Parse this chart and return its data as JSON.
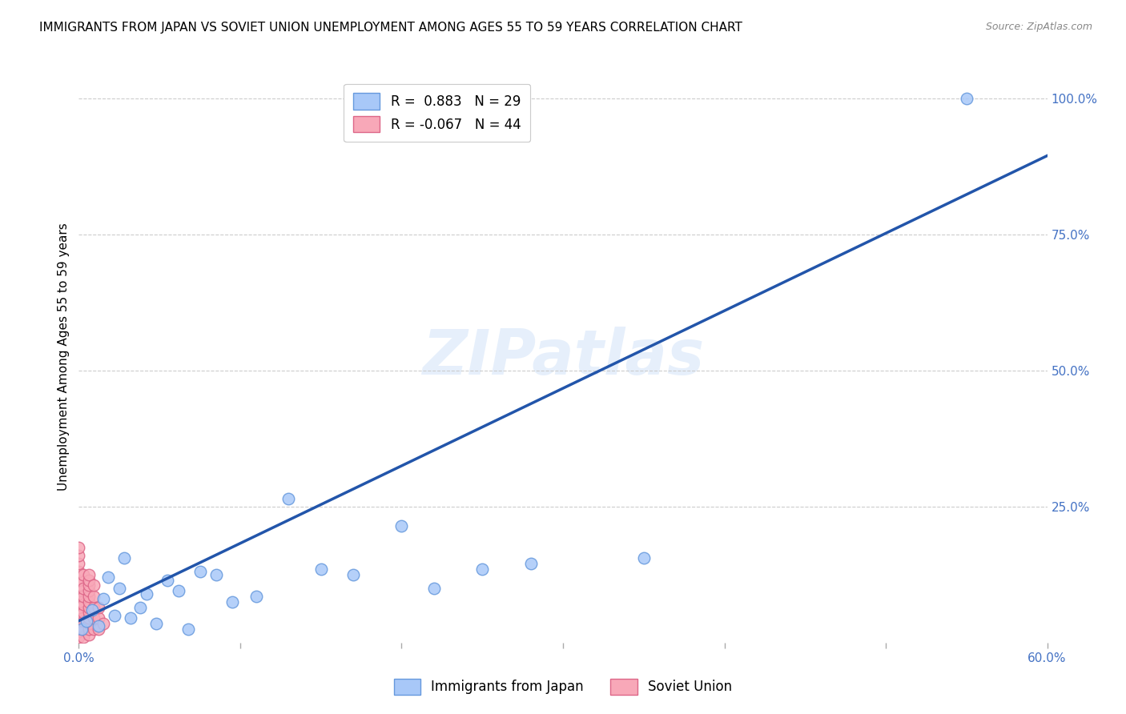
{
  "title": "IMMIGRANTS FROM JAPAN VS SOVIET UNION UNEMPLOYMENT AMONG AGES 55 TO 59 YEARS CORRELATION CHART",
  "source": "Source: ZipAtlas.com",
  "ylabel": "Unemployment Among Ages 55 to 59 years",
  "xlim": [
    0.0,
    0.6
  ],
  "ylim": [
    0.0,
    1.05
  ],
  "xtick_vals": [
    0.0,
    0.1,
    0.2,
    0.3,
    0.4,
    0.5,
    0.6
  ],
  "xtick_labels": [
    "0.0%",
    "",
    "",
    "",
    "",
    "",
    "60.0%"
  ],
  "ytick_vals": [
    0.25,
    0.5,
    0.75,
    1.0
  ],
  "ytick_labels": [
    "25.0%",
    "50.0%",
    "75.0%",
    "100.0%"
  ],
  "watermark": "ZIPatlas",
  "legend_entries": [
    {
      "label": "Immigrants from Japan",
      "R": 0.883,
      "N": 29,
      "color": "#a8c8f8"
    },
    {
      "label": "Soviet Union",
      "R": -0.067,
      "N": 44,
      "color": "#f8a8b8"
    }
  ],
  "japan_points_x": [
    0.002,
    0.005,
    0.008,
    0.012,
    0.015,
    0.018,
    0.022,
    0.025,
    0.028,
    0.032,
    0.038,
    0.042,
    0.048,
    0.055,
    0.062,
    0.068,
    0.075,
    0.085,
    0.095,
    0.11,
    0.13,
    0.15,
    0.17,
    0.2,
    0.22,
    0.25,
    0.28,
    0.35,
    0.55
  ],
  "japan_points_y": [
    0.025,
    0.04,
    0.06,
    0.03,
    0.08,
    0.12,
    0.05,
    0.1,
    0.155,
    0.045,
    0.065,
    0.09,
    0.035,
    0.115,
    0.095,
    0.025,
    0.13,
    0.125,
    0.075,
    0.085,
    0.265,
    0.135,
    0.125,
    0.215,
    0.1,
    0.135,
    0.145,
    0.155,
    1.0
  ],
  "soviet_points_x": [
    0.0,
    0.0,
    0.0,
    0.0,
    0.0,
    0.0,
    0.0,
    0.0,
    0.0,
    0.0,
    0.0,
    0.0,
    0.0,
    0.0,
    0.0,
    0.003,
    0.003,
    0.003,
    0.003,
    0.003,
    0.003,
    0.003,
    0.003,
    0.006,
    0.006,
    0.006,
    0.006,
    0.006,
    0.006,
    0.006,
    0.006,
    0.006,
    0.006,
    0.006,
    0.006,
    0.009,
    0.009,
    0.009,
    0.009,
    0.009,
    0.012,
    0.012,
    0.012,
    0.015
  ],
  "soviet_points_y": [
    0.01,
    0.02,
    0.03,
    0.04,
    0.055,
    0.065,
    0.075,
    0.085,
    0.095,
    0.105,
    0.115,
    0.13,
    0.145,
    0.16,
    0.175,
    0.01,
    0.025,
    0.04,
    0.055,
    0.07,
    0.085,
    0.1,
    0.125,
    0.015,
    0.025,
    0.035,
    0.045,
    0.055,
    0.065,
    0.075,
    0.085,
    0.095,
    0.105,
    0.115,
    0.125,
    0.025,
    0.045,
    0.065,
    0.085,
    0.105,
    0.025,
    0.045,
    0.065,
    0.035
  ],
  "regression_line_japan": {
    "x0": 0.0,
    "y0": 0.04,
    "x1": 0.6,
    "y1": 0.895
  },
  "axis_color": "#4472c4",
  "tick_color": "#4472c4",
  "scatter_japan_color": "#a8c8f8",
  "scatter_japan_edge": "#6699dd",
  "scatter_soviet_color": "#f8a8b8",
  "scatter_soviet_edge": "#dd6688",
  "regression_color": "#2255aa",
  "grid_color": "#cccccc",
  "background_color": "#ffffff",
  "title_fontsize": 11,
  "axis_label_fontsize": 11,
  "tick_fontsize": 11,
  "legend_fontsize": 12,
  "scatter_size": 110
}
